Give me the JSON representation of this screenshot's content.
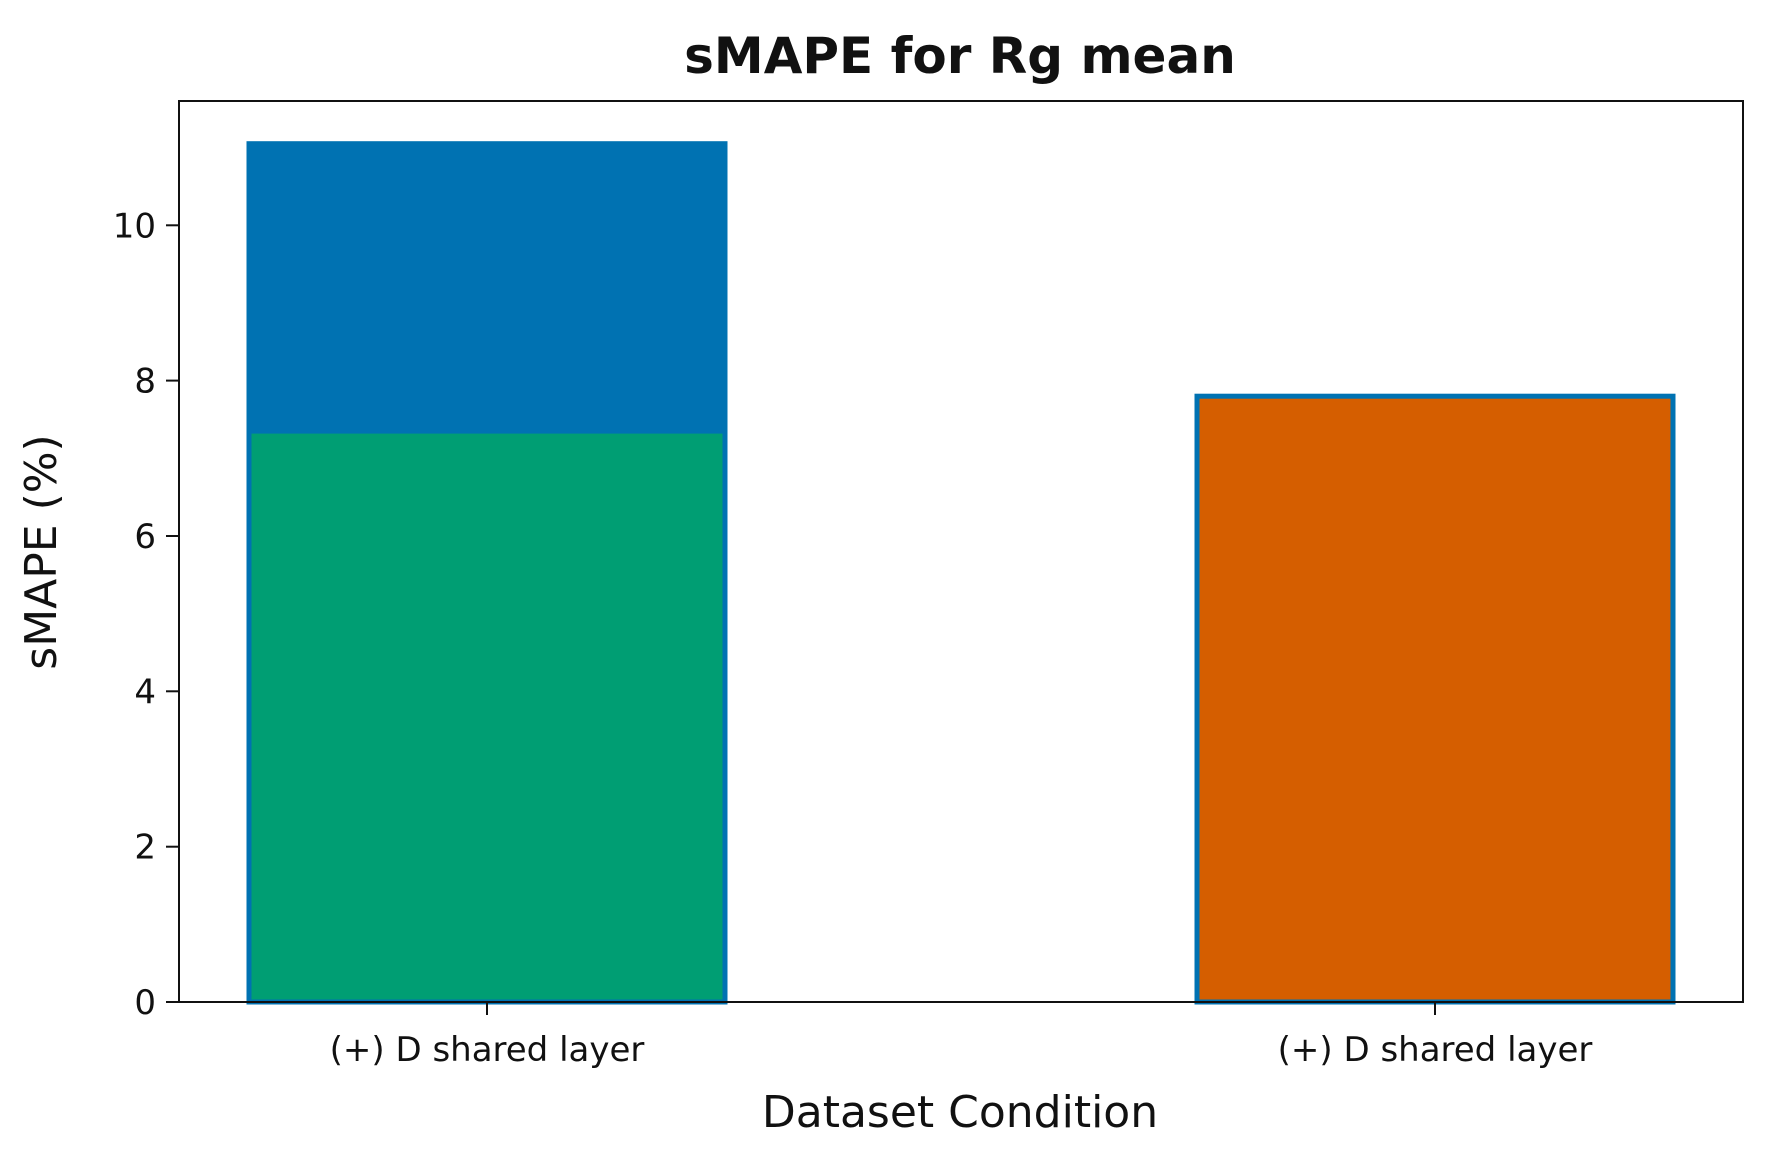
{
  "chart_data": {
    "type": "bar",
    "title": "sMAPE for Rg mean",
    "xlabel": "Dataset Condition",
    "ylabel": "sMAPE (%)",
    "ylim": [
      0,
      11.6
    ],
    "yticks": [
      0,
      2,
      4,
      6,
      8,
      10
    ],
    "categories": [
      "(+) D shared layer",
      "(+) D shared layer"
    ],
    "bars": [
      {
        "category_index": 0,
        "value": 11.05,
        "fill": "#0072b2",
        "edge": "#0072b2"
      },
      {
        "category_index": 0,
        "value": 7.35,
        "fill": "#009e73",
        "edge": "#0072b2"
      },
      {
        "category_index": 1,
        "value": 7.8,
        "fill": "#d55e00",
        "edge": "#0072b2"
      }
    ],
    "grid": false,
    "legend": "none"
  }
}
